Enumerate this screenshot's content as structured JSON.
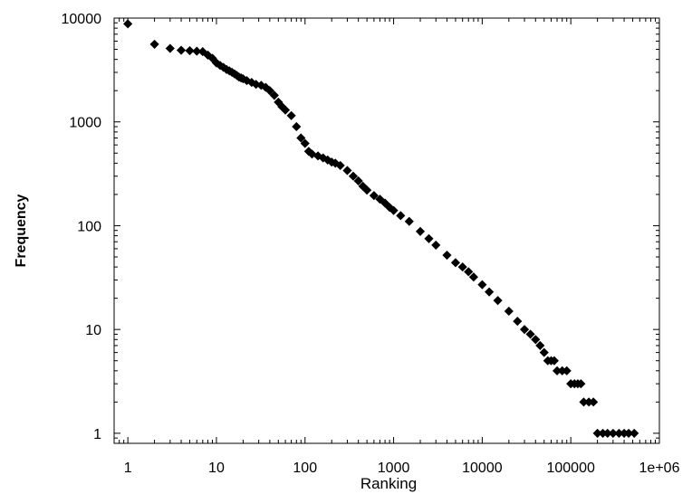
{
  "chart_data": {
    "type": "scatter",
    "xlabel": "Ranking",
    "ylabel": "Frequency",
    "xscale": "log",
    "yscale": "log",
    "xlim": [
      0.7,
      1000000
    ],
    "ylim": [
      0.8,
      10000
    ],
    "grid": false,
    "legend": "none",
    "marker": "diamond",
    "marker_color": "#000000",
    "x_tick_values": [
      1,
      10,
      100,
      1000,
      10000,
      100000,
      1000000
    ],
    "x_tick_labels": [
      "1",
      "10",
      "100",
      "1000",
      "10000",
      "100000",
      "1e+06"
    ],
    "y_tick_values": [
      1,
      10,
      100,
      1000,
      10000
    ],
    "y_tick_labels": [
      "1",
      "10",
      "100",
      "1000",
      "10000"
    ],
    "series": [
      {
        "points": [
          [
            1,
            8800
          ],
          [
            2,
            5600
          ],
          [
            3,
            5100
          ],
          [
            4,
            4900
          ],
          [
            5,
            4850
          ],
          [
            6,
            4800
          ],
          [
            7,
            4750
          ],
          [
            8,
            4400
          ],
          [
            9,
            4100
          ],
          [
            10,
            3700
          ],
          [
            11,
            3500
          ],
          [
            12,
            3350
          ],
          [
            13,
            3200
          ],
          [
            14,
            3100
          ],
          [
            15,
            3000
          ],
          [
            16,
            2900
          ],
          [
            17,
            2800
          ],
          [
            18,
            2700
          ],
          [
            19,
            2650
          ],
          [
            20,
            2600
          ],
          [
            22,
            2500
          ],
          [
            25,
            2400
          ],
          [
            28,
            2300
          ],
          [
            32,
            2250
          ],
          [
            36,
            2150
          ],
          [
            40,
            2000
          ],
          [
            45,
            1800
          ],
          [
            50,
            1550
          ],
          [
            55,
            1400
          ],
          [
            60,
            1300
          ],
          [
            70,
            1150
          ],
          [
            80,
            900
          ],
          [
            90,
            700
          ],
          [
            100,
            620
          ],
          [
            110,
            520
          ],
          [
            120,
            490
          ],
          [
            140,
            470
          ],
          [
            160,
            450
          ],
          [
            180,
            430
          ],
          [
            200,
            410
          ],
          [
            220,
            400
          ],
          [
            250,
            380
          ],
          [
            300,
            340
          ],
          [
            350,
            300
          ],
          [
            400,
            270
          ],
          [
            450,
            240
          ],
          [
            500,
            220
          ],
          [
            600,
            195
          ],
          [
            700,
            180
          ],
          [
            800,
            165
          ],
          [
            900,
            150
          ],
          [
            1000,
            140
          ],
          [
            1200,
            125
          ],
          [
            1500,
            110
          ],
          [
            2000,
            88
          ],
          [
            2500,
            75
          ],
          [
            3000,
            65
          ],
          [
            4000,
            52
          ],
          [
            5000,
            44
          ],
          [
            6000,
            40
          ],
          [
            7000,
            36
          ],
          [
            8000,
            32
          ],
          [
            10000,
            27
          ],
          [
            12000,
            23
          ],
          [
            15000,
            19
          ],
          [
            20000,
            15
          ],
          [
            25000,
            12
          ],
          [
            30000,
            10
          ],
          [
            35000,
            9
          ],
          [
            40000,
            8
          ],
          [
            45000,
            7
          ],
          [
            50000,
            6
          ],
          [
            55000,
            5
          ],
          [
            60000,
            5
          ],
          [
            65000,
            5
          ],
          [
            70000,
            4
          ],
          [
            80000,
            4
          ],
          [
            90000,
            4
          ],
          [
            100000,
            3
          ],
          [
            110000,
            3
          ],
          [
            120000,
            3
          ],
          [
            130000,
            3
          ],
          [
            140000,
            2
          ],
          [
            160000,
            2
          ],
          [
            180000,
            2
          ],
          [
            200000,
            1
          ],
          [
            230000,
            1
          ],
          [
            260000,
            1
          ],
          [
            300000,
            1
          ],
          [
            350000,
            1
          ],
          [
            400000,
            1
          ],
          [
            450000,
            1
          ],
          [
            520000,
            1
          ]
        ]
      }
    ]
  }
}
